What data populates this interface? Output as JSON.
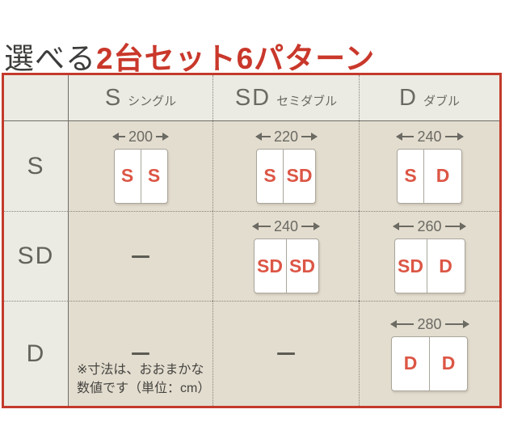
{
  "title": {
    "prefix": "選べる",
    "highlight": "2台セット6パターン"
  },
  "table": {
    "columns": [
      {
        "abbr": "S",
        "name": "シングル"
      },
      {
        "abbr": "SD",
        "name": "セミダブル"
      },
      {
        "abbr": "D",
        "name": "ダブル"
      }
    ],
    "rows": [
      {
        "header": "S",
        "cells": [
          {
            "type": "beds",
            "width_cm": "200",
            "beds": [
              "S",
              "S"
            ]
          },
          {
            "type": "beds",
            "width_cm": "220",
            "beds": [
              "S",
              "SD"
            ]
          },
          {
            "type": "beds",
            "width_cm": "240",
            "beds": [
              "S",
              "D"
            ]
          }
        ]
      },
      {
        "header": "SD",
        "cells": [
          {
            "type": "dash"
          },
          {
            "type": "beds",
            "width_cm": "240",
            "beds": [
              "SD",
              "SD"
            ]
          },
          {
            "type": "beds",
            "width_cm": "260",
            "beds": [
              "SD",
              "D"
            ]
          }
        ]
      },
      {
        "header": "D",
        "cells": [
          {
            "type": "dash",
            "note": [
              "※寸法は、おおまかな",
              "数値です（単位：cm）"
            ]
          },
          {
            "type": "dash"
          },
          {
            "type": "beds",
            "width_cm": "280",
            "beds": [
              "D",
              "D"
            ]
          }
        ]
      }
    ]
  },
  "colors": {
    "accent_red": "#c9382b",
    "bed_label_red": "#dc5645",
    "header_bg": "#ecebe3",
    "cell_bg": "#e3ddcf"
  }
}
